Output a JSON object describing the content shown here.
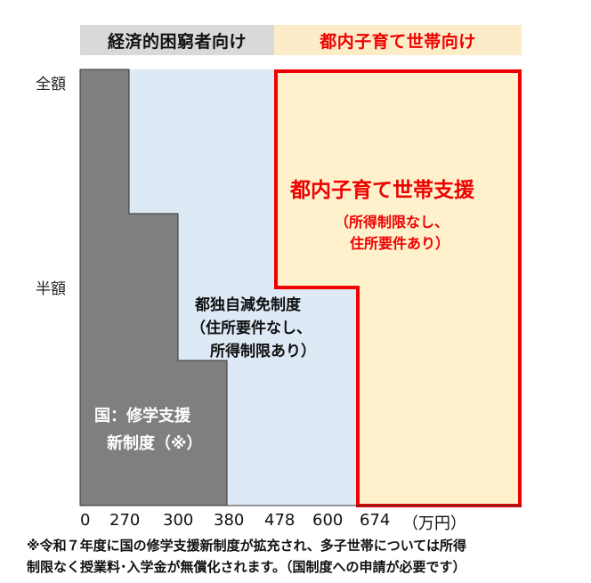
{
  "header": {
    "left": "経済的困窮者向け",
    "right": "都内子育て世帯向け"
  },
  "y_axis": {
    "full": "全額",
    "half": "半額"
  },
  "x_axis": {
    "ticks": [
      "0",
      "270",
      "300",
      "380",
      "478",
      "600",
      "674"
    ],
    "unit": "（万円）"
  },
  "regions": {
    "national": {
      "line1": "国：修学支援",
      "line2": "新制度（※）"
    },
    "tokyo_reduction": {
      "line1": "都独自減免制度",
      "line2": "（住所要件なし、",
      "line3": "所得制限あり）"
    },
    "tokyo_family": {
      "title": "都内子育て世帯支援",
      "line1": "（所得制限なし、",
      "line2": "住所要件あり）"
    }
  },
  "footnote": {
    "line1": "※令和７年度に国の修学支援新制度が拡充され、多子世帯については所得",
    "line2": "制限なく授業料･入学金が無償化されます。（国制度への申請が必要です）"
  },
  "colors": {
    "gray_header": "#d9d9d9",
    "orange_header": "#fdecc8",
    "national": "#7f7f7f",
    "tokyo_reduction": "#ddeaf6",
    "tokyo_family": "#fff1cc",
    "red": "#ee0000"
  }
}
